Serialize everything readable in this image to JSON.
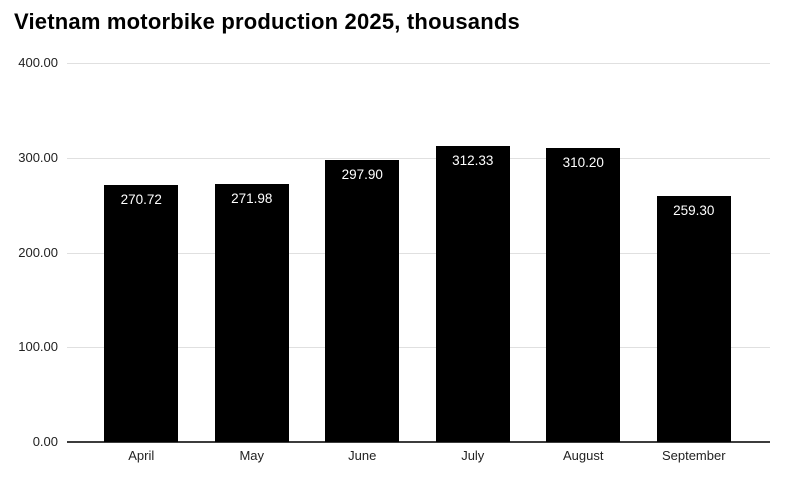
{
  "title": "Vietnam motorbike production 2025, thousands",
  "chart_data": {
    "type": "bar",
    "title": "Vietnam motorbike production 2025, thousands",
    "categories": [
      "April",
      "May",
      "June",
      "July",
      "August",
      "September"
    ],
    "values": [
      270.72,
      271.98,
      297.9,
      312.33,
      310.2,
      259.3
    ],
    "value_labels": [
      "270.72",
      "271.98",
      "297.90",
      "312.33",
      "310.20",
      "259.30"
    ],
    "xlabel": "",
    "ylabel": "",
    "ylim": [
      0,
      400
    ],
    "yticks": [
      0,
      100,
      200,
      300,
      400
    ],
    "ytick_labels": [
      "0.00",
      "100.00",
      "200.00",
      "300.00",
      "400.00"
    ],
    "grid": true,
    "legend": false,
    "colors": {
      "bar": "#000000",
      "bar_label_text": "#ffffff",
      "gridline": "#e0e0e0",
      "zero_line": "#3c3c3c",
      "title_text": "#000000",
      "tick_text": "#222222",
      "background": "#ffffff"
    }
  }
}
